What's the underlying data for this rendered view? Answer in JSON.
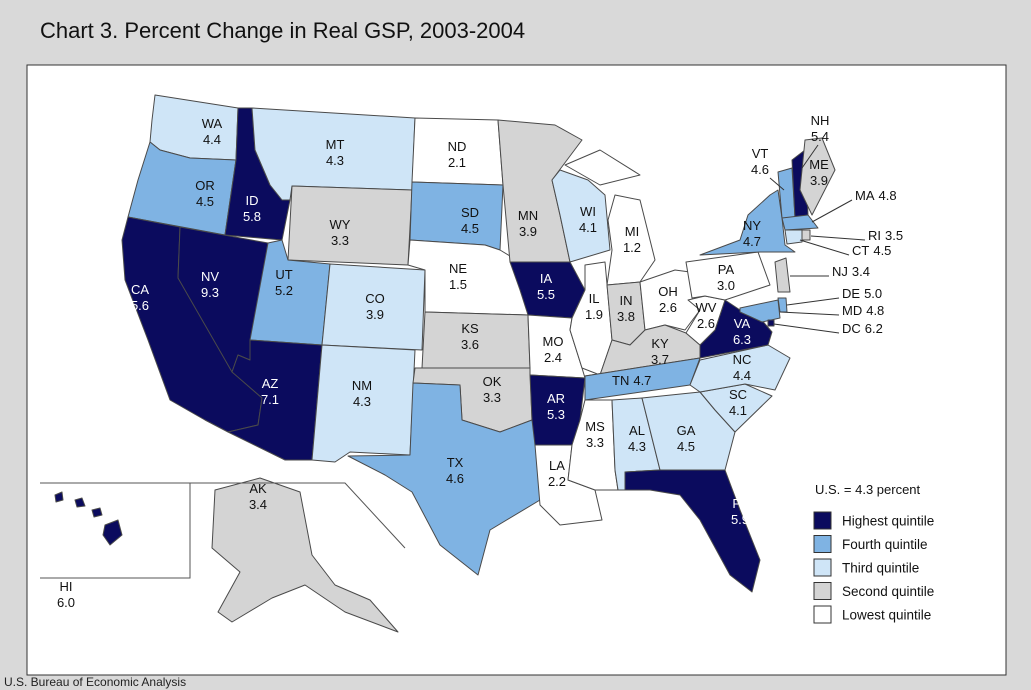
{
  "title": "Chart 3. Percent Change in Real GSP, 2003-2004",
  "note": "U.S. = 4.3 percent",
  "source": "U.S. Bureau of Economic Analysis",
  "legend": [
    {
      "label": "Highest quintile",
      "color": "#0b0b5e"
    },
    {
      "label": "Fourth quintile",
      "color": "#7fb3e3"
    },
    {
      "label": "Third quintile",
      "color": "#cfe5f7"
    },
    {
      "label": "Second quintile",
      "color": "#d4d4d4"
    },
    {
      "label": "Lowest quintile",
      "color": "#ffffff"
    }
  ],
  "states": [
    {
      "code": "WA",
      "value": 4.4,
      "quintile": 2
    },
    {
      "code": "OR",
      "value": 4.5,
      "quintile": 1
    },
    {
      "code": "CA",
      "value": 5.6,
      "quintile": 0
    },
    {
      "code": "NV",
      "value": 9.3,
      "quintile": 0
    },
    {
      "code": "ID",
      "value": 5.8,
      "quintile": 0
    },
    {
      "code": "MT",
      "value": 4.3,
      "quintile": 2
    },
    {
      "code": "WY",
      "value": 3.3,
      "quintile": 3
    },
    {
      "code": "UT",
      "value": 5.2,
      "quintile": 1
    },
    {
      "code": "CO",
      "value": 3.9,
      "quintile": 2
    },
    {
      "code": "AZ",
      "value": 7.1,
      "quintile": 0
    },
    {
      "code": "NM",
      "value": 4.3,
      "quintile": 2
    },
    {
      "code": "ND",
      "value": 2.1,
      "quintile": 4
    },
    {
      "code": "SD",
      "value": 4.5,
      "quintile": 1
    },
    {
      "code": "NE",
      "value": 1.5,
      "quintile": 4
    },
    {
      "code": "KS",
      "value": 3.6,
      "quintile": 3
    },
    {
      "code": "OK",
      "value": 3.3,
      "quintile": 3
    },
    {
      "code": "TX",
      "value": 4.6,
      "quintile": 1
    },
    {
      "code": "MN",
      "value": 3.9,
      "quintile": 3
    },
    {
      "code": "IA",
      "value": 5.5,
      "quintile": 0
    },
    {
      "code": "MO",
      "value": 2.4,
      "quintile": 4
    },
    {
      "code": "AR",
      "value": 5.3,
      "quintile": 0
    },
    {
      "code": "LA",
      "value": 2.2,
      "quintile": 4
    },
    {
      "code": "WI",
      "value": 4.1,
      "quintile": 2
    },
    {
      "code": "IL",
      "value": 1.9,
      "quintile": 4
    },
    {
      "code": "MI",
      "value": 1.2,
      "quintile": 4
    },
    {
      "code": "IN",
      "value": 3.8,
      "quintile": 3
    },
    {
      "code": "OH",
      "value": 2.6,
      "quintile": 4
    },
    {
      "code": "KY",
      "value": 3.7,
      "quintile": 3
    },
    {
      "code": "TN",
      "value": 4.7,
      "quintile": 1
    },
    {
      "code": "MS",
      "value": 3.3,
      "quintile": 4
    },
    {
      "code": "AL",
      "value": 4.3,
      "quintile": 2
    },
    {
      "code": "GA",
      "value": 4.5,
      "quintile": 2
    },
    {
      "code": "FL",
      "value": 5.9,
      "quintile": 0
    },
    {
      "code": "SC",
      "value": 4.1,
      "quintile": 2
    },
    {
      "code": "NC",
      "value": 4.4,
      "quintile": 2
    },
    {
      "code": "VA",
      "value": 6.3,
      "quintile": 0
    },
    {
      "code": "WV",
      "value": 2.6,
      "quintile": 4
    },
    {
      "code": "PA",
      "value": 3,
      "value_label": "3.0",
      "quintile": 4
    },
    {
      "code": "NY",
      "value": 4.7,
      "quintile": 1
    },
    {
      "code": "VT",
      "value": 4.6,
      "quintile": 1
    },
    {
      "code": "NH",
      "value": 5.4,
      "quintile": 0
    },
    {
      "code": "ME",
      "value": 3.9,
      "quintile": 3
    },
    {
      "code": "MA",
      "value": 4.8,
      "quintile": 1
    },
    {
      "code": "RI",
      "value": 3.5,
      "quintile": 3
    },
    {
      "code": "CT",
      "value": 4.5,
      "quintile": 2
    },
    {
      "code": "NJ",
      "value": 3.4,
      "quintile": 3
    },
    {
      "code": "DE",
      "value": 5,
      "value_label": "5.0",
      "quintile": 1
    },
    {
      "code": "MD",
      "value": 4.8,
      "quintile": 1
    },
    {
      "code": "DC",
      "value": 6.2,
      "quintile": 0
    },
    {
      "code": "AK",
      "value": 3.4,
      "quintile": 3
    },
    {
      "code": "HI",
      "value": 6,
      "value_label": "6.0",
      "quintile": 0
    }
  ]
}
